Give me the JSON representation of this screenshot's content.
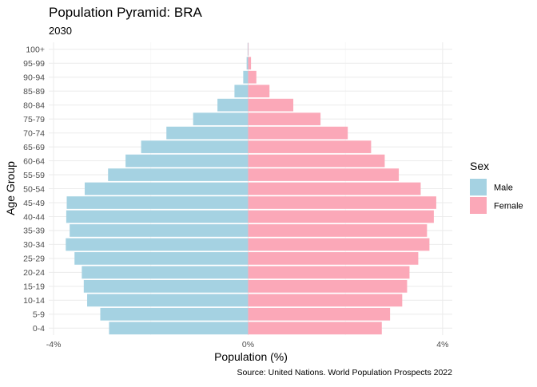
{
  "colors": {
    "male": "#a5d2e2",
    "female": "#fba8b8",
    "grid": "#ebebeb",
    "text": "#000000",
    "tick_text": "#4d4d4d"
  },
  "chart_data": {
    "type": "bar",
    "orientation": "horizontal",
    "title": "Population Pyramid: BRA",
    "subtitle": "2030",
    "xlabel": "Population (%)",
    "ylabel": "Age Group",
    "caption": "Source: United Nations. World Population Prospects 2022",
    "xlim": [
      -4.1,
      4.2
    ],
    "x_ticks": [
      -4,
      0,
      4
    ],
    "x_tick_labels": [
      "-4%",
      "0%",
      "4%"
    ],
    "grid": true,
    "legend": {
      "title": "Sex",
      "position": "right",
      "items": [
        "Male",
        "Female"
      ]
    },
    "categories": [
      "0-4",
      "5-9",
      "10-14",
      "15-19",
      "20-24",
      "25-29",
      "30-34",
      "35-39",
      "40-44",
      "45-49",
      "50-54",
      "55-59",
      "60-64",
      "65-69",
      "70-74",
      "75-79",
      "80-84",
      "85-89",
      "90-94",
      "95-99",
      "100+"
    ],
    "series": [
      {
        "name": "Male",
        "values": [
          -2.86,
          -3.04,
          -3.31,
          -3.38,
          -3.42,
          -3.57,
          -3.75,
          -3.67,
          -3.74,
          -3.73,
          -3.36,
          -2.88,
          -2.52,
          -2.2,
          -1.68,
          -1.13,
          -0.63,
          -0.28,
          -0.1,
          -0.03,
          -0.01
        ]
      },
      {
        "name": "Female",
        "values": [
          2.75,
          2.92,
          3.17,
          3.27,
          3.32,
          3.5,
          3.73,
          3.68,
          3.82,
          3.87,
          3.55,
          3.1,
          2.81,
          2.53,
          2.05,
          1.49,
          0.93,
          0.44,
          0.17,
          0.06,
          0.01
        ]
      }
    ]
  }
}
